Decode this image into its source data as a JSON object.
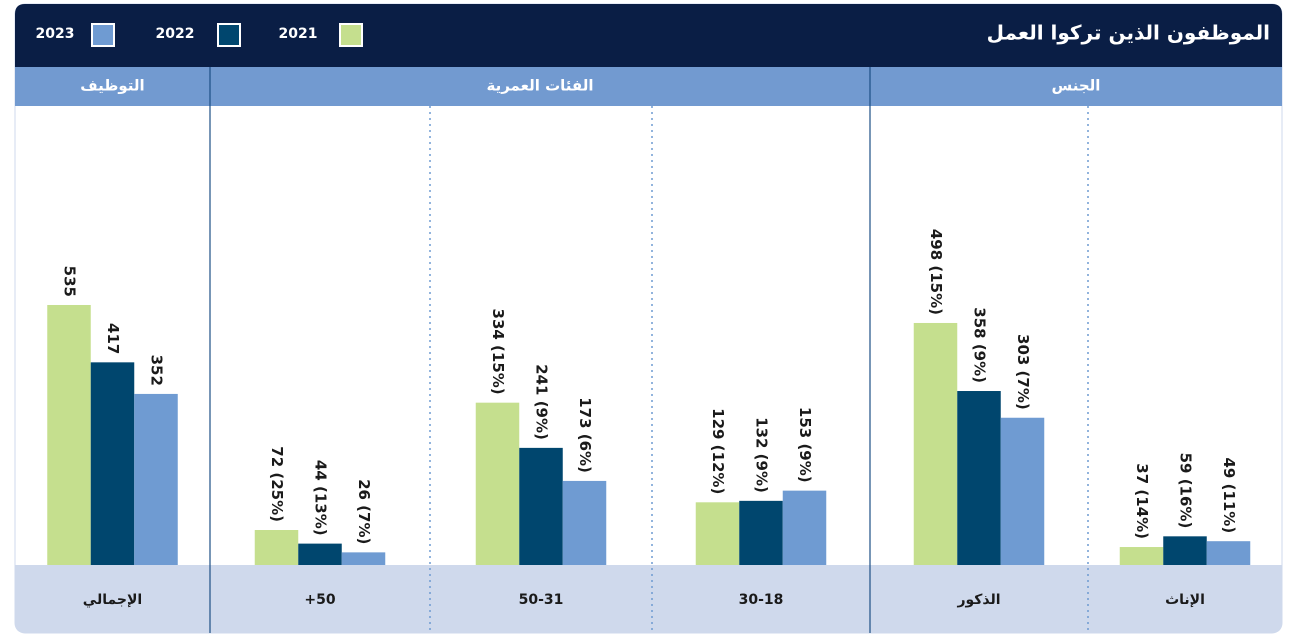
{
  "chart_data": {
    "type": "bar",
    "title": "الموظفون الذين تركوا العمل",
    "groups": [
      "الجنس",
      "الفئات العمرية",
      "التوظيف"
    ],
    "categories": [
      "الإناث",
      "الذكور",
      "30-18",
      "50-31",
      "+50",
      "الإجمالي"
    ],
    "series": [
      {
        "name": "2021",
        "color": "#c5df8e",
        "values": [
          37,
          498,
          129,
          334,
          72,
          535
        ],
        "value_labels": [
          "37 (14%)",
          "498 (15%)",
          "129 (12%)",
          "334 (15%)",
          "72 (25%)",
          "535"
        ]
      },
      {
        "name": "2022",
        "color": "#00466e",
        "values": [
          59,
          358,
          132,
          241,
          44,
          417
        ],
        "value_labels": [
          "59 (16%)",
          "358 (9%)",
          "132 (9%)",
          "241 (9%)",
          "44 (13%)",
          "417"
        ]
      },
      {
        "name": "2023",
        "color": "#6f9bd2",
        "values": [
          49,
          303,
          153,
          173,
          26,
          352
        ],
        "value_labels": [
          "49 (11%)",
          "303 (7%)",
          "153 (9%)",
          "173 (6%)",
          "26 (7%)",
          "352"
        ]
      }
    ]
  }
}
